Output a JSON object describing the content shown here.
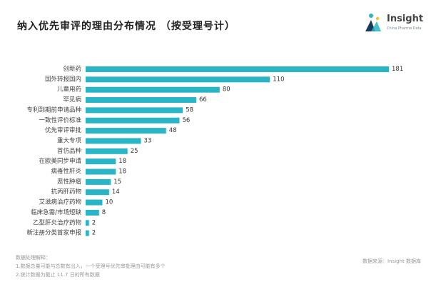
{
  "title": "纳入优先审评的理由分布情况 （按受理号计）",
  "brand": {
    "name": "Insight",
    "subtitle": "China Pharma Data",
    "colors": [
      "#29b5c6",
      "#1a3a5c",
      "#f2c230"
    ]
  },
  "chart_data": {
    "type": "bar",
    "orientation": "horizontal",
    "categories": [
      "创新药",
      "国外转报国内",
      "儿童用药",
      "罕见病",
      "专利到期前申请品种",
      "一致性评价标准",
      "优先审评审批",
      "重大专项",
      "首仿品种",
      "在欧美同步申请",
      "病毒性肝炎",
      "恶性肿瘤",
      "抗丙肝药物",
      "艾滋病治疗药物",
      "临床急需/市场短缺",
      "乙型肝炎治疗药物",
      "新注册分类首家申报"
    ],
    "values": [
      181,
      110,
      80,
      66,
      58,
      56,
      48,
      33,
      25,
      18,
      18,
      15,
      14,
      10,
      8,
      2,
      2
    ],
    "bar_color": "#29b5c6",
    "xlim": [
      0,
      181
    ],
    "grid": false
  },
  "footer": {
    "notes_heading": "数据处理解释：",
    "note1": "1.数据总量可能与总数有出入，一个受理号优先审批理由可能有多个",
    "note2": "2.统计数据为截止 11.7 日的所有数据",
    "source": "数据来源：Insight 数据库"
  }
}
